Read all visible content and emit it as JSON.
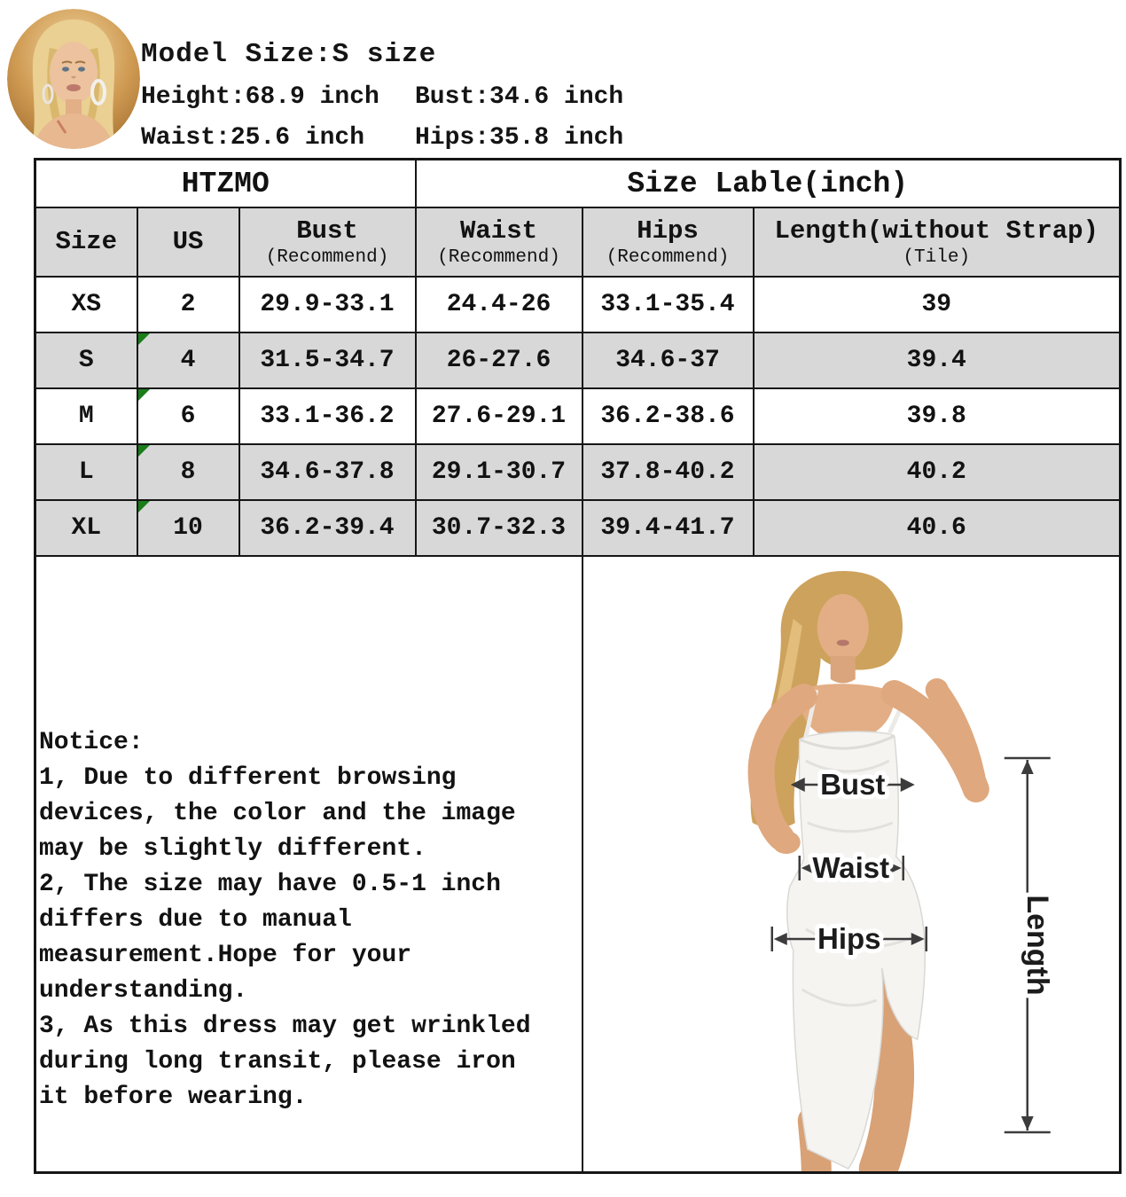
{
  "model_info": {
    "title": "Model Size:S size",
    "height": "Height:68.9 inch",
    "bust": "Bust:34.6 inch",
    "waist": "Waist:25.6 inch",
    "hips": "Hips:35.8 inch"
  },
  "table": {
    "brand": "HTZMO",
    "size_label_header": "Size Lable(inch)",
    "columns": [
      {
        "label": "Size",
        "sub": ""
      },
      {
        "label": "US",
        "sub": ""
      },
      {
        "label": "Bust",
        "sub": "(Recommend)"
      },
      {
        "label": "Waist",
        "sub": "(Recommend)"
      },
      {
        "label": "Hips",
        "sub": "(Recommend)"
      },
      {
        "label": "Length(without Strap)",
        "sub": "(Tile)"
      }
    ],
    "rows": [
      {
        "size": "XS",
        "us": "2",
        "bust": "29.9-33.1",
        "waist": "24.4-26",
        "hips": "33.1-35.4",
        "length": "39",
        "shaded": false,
        "flag": false
      },
      {
        "size": "S",
        "us": "4",
        "bust": "31.5-34.7",
        "waist": "26-27.6",
        "hips": "34.6-37",
        "length": "39.4",
        "shaded": true,
        "flag": true
      },
      {
        "size": "M",
        "us": "6",
        "bust": "33.1-36.2",
        "waist": "27.6-29.1",
        "hips": "36.2-38.6",
        "length": "39.8",
        "shaded": false,
        "flag": true
      },
      {
        "size": "L",
        "us": "8",
        "bust": "34.6-37.8",
        "waist": "29.1-30.7",
        "hips": "37.8-40.2",
        "length": "40.2",
        "shaded": true,
        "flag": true
      },
      {
        "size": "XL",
        "us": "10",
        "bust": "36.2-39.4",
        "waist": "30.7-32.3",
        "hips": "39.4-41.7",
        "length": "40.6",
        "shaded": true,
        "flag": true
      }
    ]
  },
  "notice": {
    "text": "Notice:\n1, Due to different browsing\ndevices, the color and the image\nmay be slightly different.\n2, The size may have 0.5-1 inch\ndiffers due to manual\nmeasurement.Hope for your\nunderstanding.\n3, As this dress may get wrinkled\nduring long transit, please iron\nit before wearing."
  },
  "figure_labels": {
    "bust": "Bust",
    "waist": "Waist",
    "hips": "Hips",
    "length": "Length"
  },
  "colors": {
    "row_shade": "#d8d8d8",
    "border": "#161616",
    "flag_green": "#1a7d1a"
  },
  "chart_data": {
    "type": "table",
    "title": "Size Lable(inch)",
    "brand": "HTZMO",
    "columns": [
      "Size",
      "US",
      "Bust (Recommend)",
      "Waist (Recommend)",
      "Hips (Recommend)",
      "Length(without Strap) (Tile)"
    ],
    "rows": [
      [
        "XS",
        "2",
        "29.9-33.1",
        "24.4-26",
        "33.1-35.4",
        "39"
      ],
      [
        "S",
        "4",
        "31.5-34.7",
        "26-27.6",
        "34.6-37",
        "39.4"
      ],
      [
        "M",
        "6",
        "33.1-36.2",
        "27.6-29.1",
        "36.2-38.6",
        "39.8"
      ],
      [
        "L",
        "8",
        "34.6-37.8",
        "29.1-30.7",
        "37.8-40.2",
        "40.2"
      ],
      [
        "XL",
        "10",
        "36.2-39.4",
        "30.7-32.3",
        "39.4-41.7",
        "40.6"
      ]
    ]
  }
}
